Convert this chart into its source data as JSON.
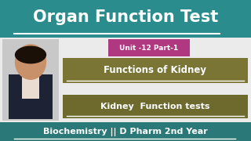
{
  "title": "Organ Function Test",
  "unit_label": "Unit -12 Part-1",
  "box1_text": "Functions of Kidney",
  "box2_text": "Kidney  Function tests",
  "footer_text": "Biochemistry || D Pharm 2nd Year",
  "bg_color": "#f0f0f0",
  "teal_color": "#2a8c8c",
  "pink_color": "#b03880",
  "olive_color": "#7a7535",
  "olive2_color": "#6e6a2e",
  "title_text_color": "#ffffff",
  "unit_text_color": "#ffffff",
  "box_text_color": "#ffffff",
  "footer_text_color": "#ffffff",
  "footer_bg": "#2a7878",
  "photo_bg": "#c8c8c8",
  "skin_color": "#c8916a",
  "hair_color": "#1a1008",
  "suit_color": "#1e2235",
  "shirt_color": "#e8ddd0"
}
